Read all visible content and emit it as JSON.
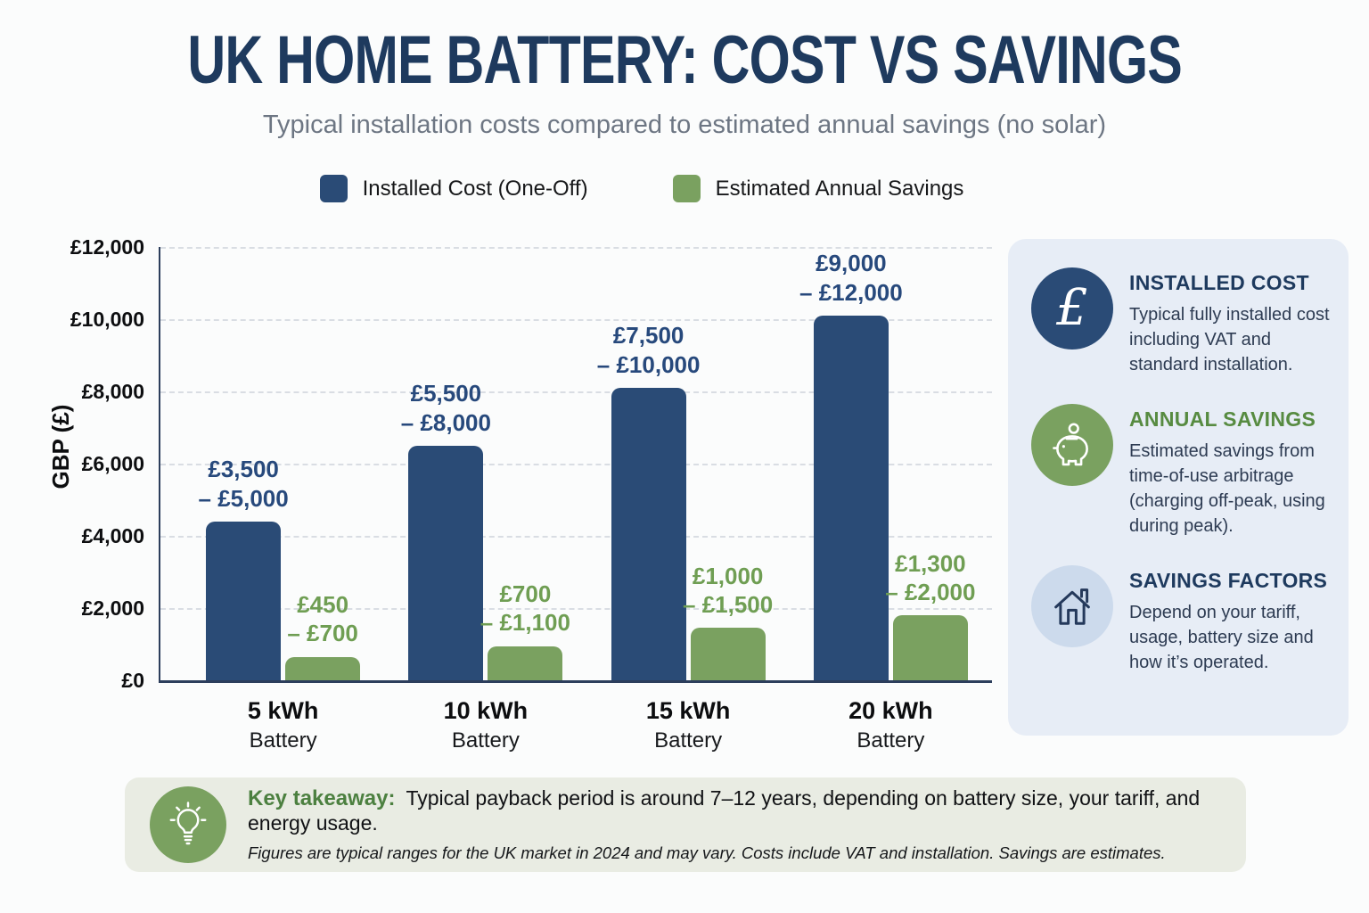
{
  "page": {
    "bg": "#fbfcfc"
  },
  "header": {
    "title": "UK HOME BATTERY: COST VS SAVINGS",
    "subtitle": "Typical installation costs compared to estimated annual savings (no solar)"
  },
  "legend": {
    "items": [
      {
        "label": "Installed Cost (One-Off)",
        "color": "#2a4b76"
      },
      {
        "label": "Estimated Annual Savings",
        "color": "#7aa160"
      }
    ]
  },
  "chart_data": {
    "type": "bar",
    "title": "UK HOME BATTERY: COST VS SAVINGS",
    "categories": [
      "5 kWh",
      "10 kWh",
      "15 kWh",
      "20 kWh"
    ],
    "category_subtitle": "Battery",
    "xlabel": "",
    "ylabel": "GBP (£)",
    "ylim": [
      0,
      12000
    ],
    "yticks": [
      {
        "label": "£12,000",
        "value": 12000
      },
      {
        "label": "£10,000",
        "value": 10000
      },
      {
        "label": "£8,000",
        "value": 8000
      },
      {
        "label": "£6,000",
        "value": 6000
      },
      {
        "label": "£4,000",
        "value": 4000
      },
      {
        "label": "£2,000",
        "value": 2000
      },
      {
        "label": "£0",
        "value": 0
      }
    ],
    "grid": "horizontal-dashed",
    "legend_position": "top-center",
    "series": [
      {
        "name": "Installed Cost (One-Off)",
        "color": "#2a4b76",
        "label_color": "#27497c",
        "values": [
          4400,
          6500,
          8100,
          10100
        ],
        "range_labels": [
          [
            "£3,500",
            "– £5,000"
          ],
          [
            "£5,500",
            "– £8,000"
          ],
          [
            "£7,500",
            "– £10,000"
          ],
          [
            "£9,000",
            "– £12,000"
          ]
        ]
      },
      {
        "name": "Estimated Annual Savings",
        "color": "#7aa160",
        "label_color": "#6f9e53",
        "values": [
          650,
          950,
          1450,
          1800
        ],
        "range_labels": [
          [
            "£450",
            "– £700"
          ],
          [
            "£700",
            "– £1,100"
          ],
          [
            "£1,000",
            "– £1,500"
          ],
          [
            "£1,300",
            "– £2,000"
          ]
        ]
      }
    ]
  },
  "sidebar": {
    "cards": [
      {
        "icon": "pound-icon",
        "icon_bg": "#2a4b76",
        "icon_fg": "#ffffff",
        "heading": "INSTALLED COST",
        "heading_color": "#1e3a5e",
        "body": "Typical fully installed cost including VAT and standard installation."
      },
      {
        "icon": "piggy-bank-icon",
        "icon_bg": "#7aa160",
        "icon_fg": "#ffffff",
        "heading": "ANNUAL SAVINGS",
        "heading_color": "#578b41",
        "body": "Estimated savings from time-of-use arbitrage (charging off-peak, using during peak)."
      },
      {
        "icon": "house-icon",
        "icon_bg": "#ccdaec",
        "icon_fg": "#24395b",
        "heading": "SAVINGS FACTORS",
        "heading_color": "#1e3a5e",
        "body": "Depend on your tariff, usage, battery size and how it’s operated."
      }
    ]
  },
  "footer": {
    "icon": "lightbulb-icon",
    "icon_bg": "#7aa160",
    "label": "Key takeaway:",
    "label_color": "#4c8040",
    "text": "Typical payback period is around 7–12 years, depending on battery size, your tariff, and energy usage.",
    "note": "Figures are typical ranges for the UK market in 2024 and may vary. Costs include VAT and installation. Savings are estimates."
  }
}
